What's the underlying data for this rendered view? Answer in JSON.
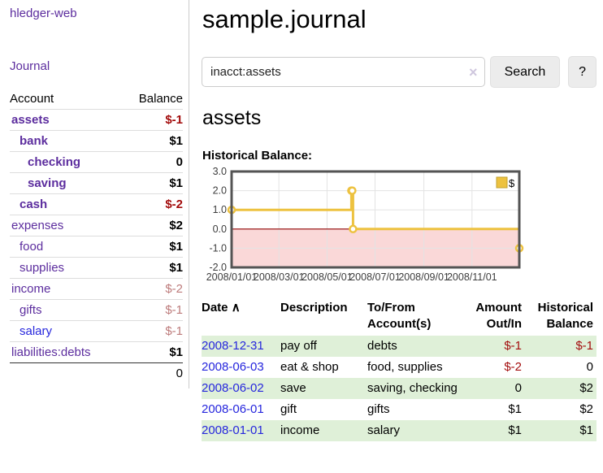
{
  "sidebar": {
    "app_title": "hledger-web",
    "journal_link": "Journal",
    "accounts": {
      "col_account": "Account",
      "col_balance": "Balance",
      "rows": [
        {
          "name": "assets",
          "indent": 0,
          "name_style": "bold",
          "link_style": "purple",
          "balance": "$-1",
          "balance_style": "neg-bold"
        },
        {
          "name": "bank",
          "indent": 1,
          "name_style": "bold",
          "link_style": "purple",
          "balance": "$1",
          "balance_style": "bold"
        },
        {
          "name": "checking",
          "indent": 2,
          "name_style": "bold",
          "link_style": "purple",
          "balance": "0",
          "balance_style": "bold"
        },
        {
          "name": "saving",
          "indent": 2,
          "name_style": "bold",
          "link_style": "purple",
          "balance": "$1",
          "balance_style": "bold"
        },
        {
          "name": "cash",
          "indent": 1,
          "name_style": "bold",
          "link_style": "purple",
          "balance": "$-2",
          "balance_style": "neg-bold"
        },
        {
          "name": "expenses",
          "indent": 0,
          "name_style": "plain",
          "link_style": "purple",
          "balance": "$2",
          "balance_style": "bold"
        },
        {
          "name": "food",
          "indent": 1,
          "name_style": "plain",
          "link_style": "purple",
          "balance": "$1",
          "balance_style": "bold"
        },
        {
          "name": "supplies",
          "indent": 1,
          "name_style": "plain",
          "link_style": "purple",
          "balance": "$1",
          "balance_style": "bold"
        },
        {
          "name": "income",
          "indent": 0,
          "name_style": "plain",
          "link_style": "purple",
          "balance": "$-2",
          "balance_style": "neg-soft"
        },
        {
          "name": "gifts",
          "indent": 1,
          "name_style": "plain",
          "link_style": "purple",
          "balance": "$-1",
          "balance_style": "neg-soft"
        },
        {
          "name": "salary",
          "indent": 1,
          "name_style": "plain",
          "link_style": "blue",
          "balance": "$-1",
          "balance_style": "neg-soft"
        },
        {
          "name": "liabilities:debts",
          "indent": 0,
          "name_style": "plain",
          "link_style": "purple",
          "balance": "$1",
          "balance_style": "bold"
        }
      ],
      "total": "0"
    }
  },
  "main": {
    "title": "sample.journal",
    "search": {
      "value": "inacct:assets",
      "clear_icon": "×",
      "search_button": "Search",
      "help_button": "?"
    },
    "account_heading": "assets",
    "section_label": "Historical Balance:",
    "register": {
      "col_date": "Date",
      "sort_icon": "∧",
      "col_description": "Description",
      "col_accounts": "To/From Account(s)",
      "col_amount": "Amount Out/In",
      "col_balance": "Historical Balance",
      "rows": [
        {
          "date": "2008-12-31",
          "description": "pay off",
          "accounts": "debts",
          "amount": "$-1",
          "amount_style": "neg",
          "balance": "$-1",
          "balance_style": "neg",
          "row_style": "hl"
        },
        {
          "date": "2008-06-03",
          "description": "eat & shop",
          "accounts": "food, supplies",
          "amount": "$-2",
          "amount_style": "neg",
          "balance": "0",
          "balance_style": "plain",
          "row_style": "none"
        },
        {
          "date": "2008-06-02",
          "description": "save",
          "accounts": "saving, checking",
          "amount": "0",
          "amount_style": "plain",
          "balance": "$2",
          "balance_style": "plain",
          "row_style": "hl"
        },
        {
          "date": "2008-06-01",
          "description": "gift",
          "accounts": "gifts",
          "amount": "$1",
          "amount_style": "plain",
          "balance": "$2",
          "balance_style": "plain",
          "row_style": "none"
        },
        {
          "date": "2008-01-01",
          "description": "income",
          "accounts": "salary",
          "amount": "$1",
          "amount_style": "plain",
          "balance": "$1",
          "balance_style": "plain",
          "row_style": "hl"
        }
      ]
    }
  },
  "chart_data": {
    "type": "line",
    "style": "step-after",
    "title": "Historical Balance:",
    "series": [
      {
        "name": "$",
        "color": "#edc240",
        "points": [
          {
            "date": "2008-01-01",
            "value": 1
          },
          {
            "date": "2008-06-01",
            "value": 2
          },
          {
            "date": "2008-06-02",
            "value": 2
          },
          {
            "date": "2008-06-03",
            "value": 0
          },
          {
            "date": "2008-12-31",
            "value": -1
          }
        ]
      }
    ],
    "x_range": [
      "2008-01-01",
      "2008-12-31"
    ],
    "ylim": [
      -2,
      3
    ],
    "y_ticks": [
      {
        "value": 3,
        "label": "3.0"
      },
      {
        "value": 2,
        "label": "2.0"
      },
      {
        "value": 1,
        "label": "1.0"
      },
      {
        "value": 0,
        "label": "0.0"
      },
      {
        "value": -1,
        "label": "-1.0"
      },
      {
        "value": -2,
        "label": "-2.0"
      }
    ],
    "x_ticks": [
      {
        "date": "2008-01-01",
        "label": "2008/01/01"
      },
      {
        "date": "2008-03-01",
        "label": "2008/03/01"
      },
      {
        "date": "2008-05-01",
        "label": "2008/05/01"
      },
      {
        "date": "2008-07-01",
        "label": "2008/07/01"
      },
      {
        "date": "2008-09-01",
        "label": "2008/09/01"
      },
      {
        "date": "2008-11-01",
        "label": "2008/11/01"
      }
    ],
    "legend_position": "top-right",
    "grid": true,
    "negative_region_color": "#fad8d8",
    "zero_line_color": "#8f0000",
    "border_color": "#545454",
    "grid_color": "#e3e3e3"
  },
  "colors": {
    "link_purple": "#5c2d9e",
    "link_blue": "#2626dd",
    "negative_strong": "#a30d0d",
    "negative_soft": "#bd7b7b",
    "row_highlight_green": "#dff0d8",
    "series_gold": "#edc240",
    "negative_region_pink": "#fad8d8"
  }
}
